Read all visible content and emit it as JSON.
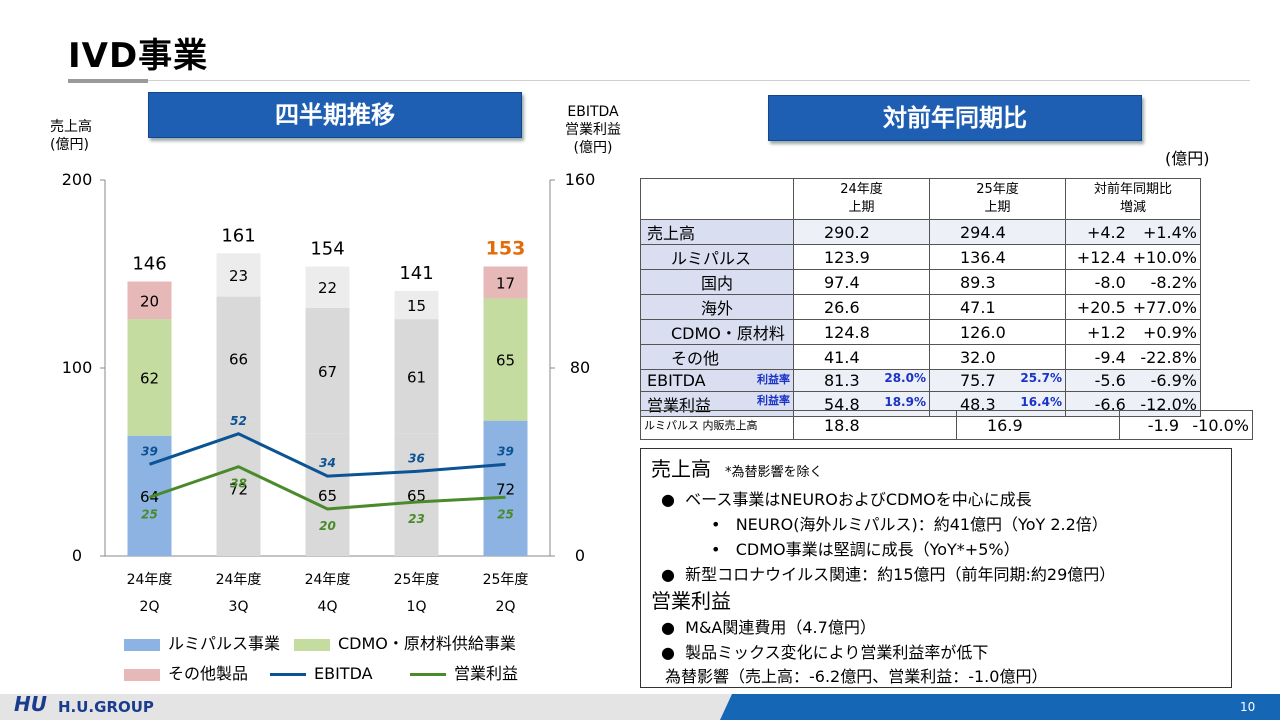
{
  "title": "IVD事業",
  "left_section": {
    "header": "四半期推移",
    "left_axis_title": [
      "売上高",
      "(億円)"
    ],
    "right_axis_title": [
      "EBITDA",
      "営業利益",
      "(億円)"
    ]
  },
  "right_section": {
    "header": "対前年同期比",
    "unit": "(億円)"
  },
  "chart_data": {
    "type": "bar",
    "categories": [
      [
        "24年度",
        "2Q"
      ],
      [
        "24年度",
        "3Q"
      ],
      [
        "24年度",
        "4Q"
      ],
      [
        "25年度",
        "1Q"
      ],
      [
        "25年度",
        "2Q"
      ]
    ],
    "left_axis": {
      "ticks": [
        "0",
        "100",
        "200"
      ],
      "ylim": [
        0,
        200
      ]
    },
    "right_axis": {
      "ticks": [
        "0",
        "80",
        "160"
      ],
      "ylim": [
        0,
        160
      ]
    },
    "series": [
      {
        "name": "ルミパルス事業",
        "axis": "left",
        "values": [
          64,
          72,
          65,
          65,
          72
        ]
      },
      {
        "name": "CDMO・原材料供給事業",
        "axis": "left",
        "values": [
          62,
          66,
          67,
          61,
          65
        ]
      },
      {
        "name": "その他製品",
        "axis": "left",
        "values": [
          20,
          23,
          22,
          15,
          17
        ]
      },
      {
        "name": "EBITDA",
        "type": "line",
        "axis": "right",
        "values": [
          39,
          52,
          34,
          36,
          39
        ]
      },
      {
        "name": "営業利益",
        "type": "line",
        "axis": "right",
        "values": [
          25,
          38,
          20,
          23,
          25
        ]
      }
    ],
    "totals": [
      "146",
      "161",
      "154",
      "141",
      "153"
    ],
    "highlight_index": 4
  },
  "colors": {
    "lumipulse_current": "#8db3e3",
    "cdmo_current": "#c4dca0",
    "other_current": "#e6b8b7",
    "gray_base": "#d9d9d9",
    "gray_mid": "#d9d9d9",
    "gray_top": "#ececec",
    "ebitda": "#0b5394",
    "op_profit": "#4a8a2a",
    "highlight_total": "#e36c0a",
    "header": "#1f5fb3",
    "table_label_bg": "#d9dff1"
  },
  "table": {
    "header": [
      "",
      "24年度\n上期",
      "25年度\n上期",
      "対前年同期比\n増減"
    ],
    "rows": [
      {
        "label": "売上高",
        "indent": 0,
        "v24": "290.2",
        "v25": "294.4",
        "diff": "+4.2",
        "pct": "+1.4%",
        "shade": true
      },
      {
        "label": "ルミパルス",
        "indent": 1,
        "v24": "123.9",
        "v25": "136.4",
        "diff": "+12.4",
        "pct": "+10.0%"
      },
      {
        "label": "国内",
        "indent": 2,
        "v24": "97.4",
        "v25": "89.3",
        "diff": "-8.0",
        "pct": "-8.2%"
      },
      {
        "label": "海外",
        "indent": 2,
        "v24": "26.6",
        "v25": "47.1",
        "diff": "+20.5",
        "pct": "+77.0%"
      },
      {
        "label": "CDMO・原材料",
        "indent": 1,
        "v24": "124.8",
        "v25": "126.0",
        "diff": "+1.2",
        "pct": "+0.9%"
      },
      {
        "label": "その他",
        "indent": 1,
        "v24": "41.4",
        "v25": "32.0",
        "diff": "-9.4",
        "pct": "-22.8%"
      },
      {
        "label": "EBITDA",
        "indent": 0,
        "rate_label": "利益率",
        "v24": "81.3",
        "r24": "28.0%",
        "v25": "75.7",
        "r25": "25.7%",
        "diff": "-5.6",
        "pct": "-6.9%",
        "shade": true
      },
      {
        "label": "営業利益",
        "indent": 0,
        "rate_label": "利益率",
        "v24": "54.8",
        "r24": "18.9%",
        "v25": "48.3",
        "r25": "16.4%",
        "diff": "-6.6",
        "pct": "-12.0%",
        "shade": true
      }
    ],
    "extra_row": {
      "label": "ルミパルス 内販売上高",
      "v24": "18.8",
      "v25": "16.9",
      "diff": "-1.9",
      "pct": "-10.0%"
    }
  },
  "notes": {
    "sales_heading": "売上高",
    "sales_note": "*為替影響を除く",
    "sales_items": [
      "ベース事業はNEUROおよびCDMOを中心に成長",
      "NEURO(海外ルミパルス)：約41億円（YoY 2.2倍）",
      "CDMO事業は堅調に成長（YoY*+5%）",
      "新型コロナウイルス関連：約15億円（前年同期:約29億円）"
    ],
    "profit_heading": "営業利益",
    "profit_items": [
      "M&A関連費用（4.7億円）",
      "製品ミックス変化により営業利益率が低下"
    ],
    "fx_line": "為替影響（売上高：-6.2億円、営業利益：-1.0億円）"
  },
  "footer": {
    "logo_mark": "HU",
    "logo_text": "H.U.GROUP",
    "page": "10"
  }
}
